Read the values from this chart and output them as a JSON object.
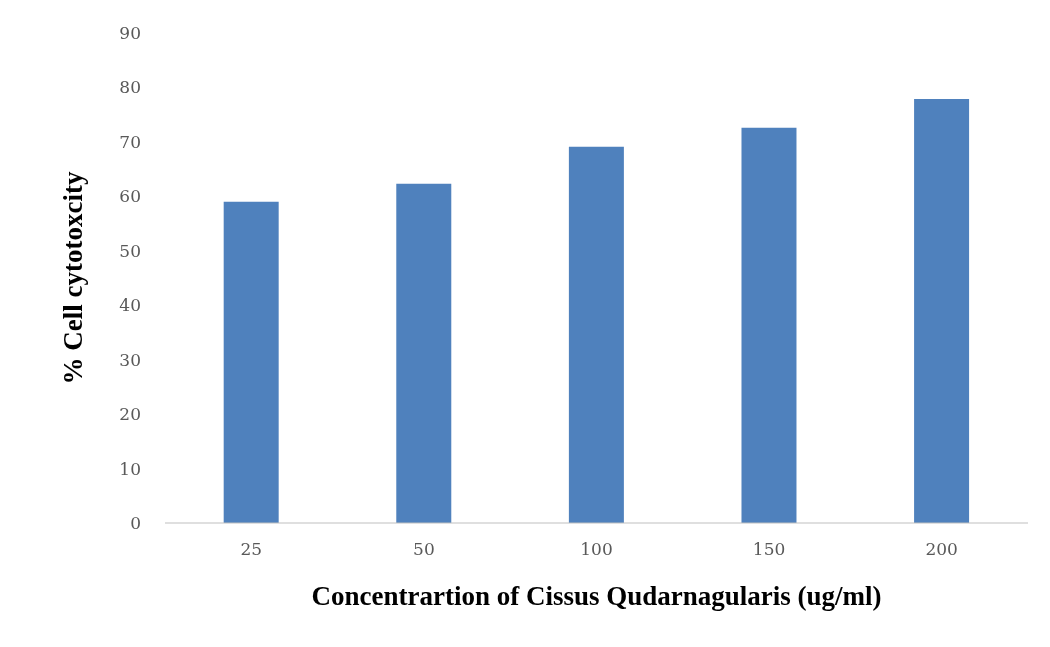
{
  "chart_data": {
    "type": "bar",
    "categories": [
      "25",
      "50",
      "100",
      "150",
      "200"
    ],
    "values": [
      59,
      62.3,
      69.1,
      72.6,
      77.9
    ],
    "color": "#4f81bd",
    "xlabel": "Concentrartion of Cissus Qudarnagularis (ug/ml)",
    "ylabel": "% Cell cytotoxcity",
    "ylim": [
      0,
      90
    ],
    "yticks": [
      0,
      10,
      20,
      30,
      40,
      50,
      60,
      70,
      80,
      90
    ],
    "grid": false,
    "legend": false
  }
}
